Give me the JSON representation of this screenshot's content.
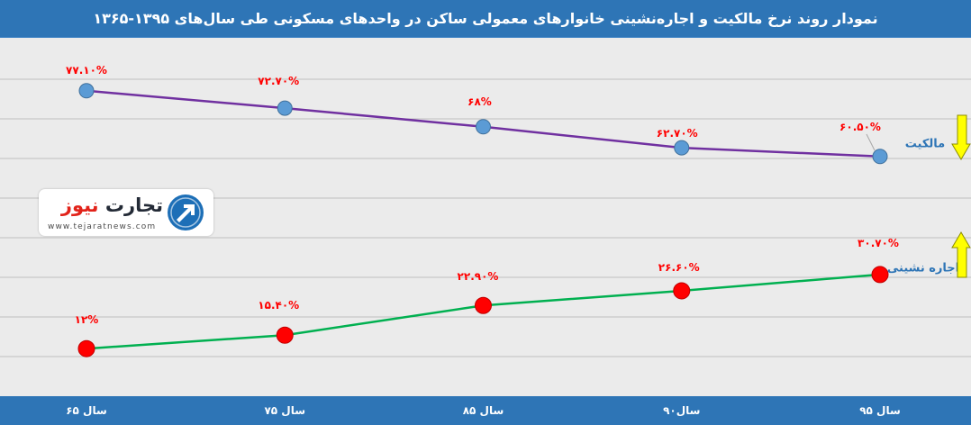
{
  "colors": {
    "title_bar": "#2e75b6",
    "background": "#ebebeb",
    "gridline": "#bfbfbf",
    "axis_bar": "#2e75b6",
    "data_label": "#ff0000",
    "series_label": "#2e75b6",
    "trend_arrow": "#ffff00"
  },
  "logo": {
    "brand_part1": "تجارت",
    "brand_part2": "نیوز",
    "website": "www.tejaratnews.com",
    "icon": "tejaratnews-logo-icon"
  },
  "chart_data": {
    "type": "line",
    "title": "نمودار روند نرخ مالکیت و اجاره‌نشینی خانوارهای معمولی ساکن در واحدهای مسکونی طی سال‌های ۱۳۹۵-۱۳۶۵",
    "categories": [
      "سال ۶۵",
      "سال ۷۵",
      "سال ۸۵",
      "سال۹۰",
      "سال ۹۵"
    ],
    "ylim": [
      0,
      90
    ],
    "grid": true,
    "legend": "right",
    "series": [
      {
        "name": "مالکیت",
        "values": [
          77.1,
          72.7,
          68,
          62.7,
          60.5
        ],
        "labels": [
          "۷۷.۱۰%",
          "۷۲.۷۰%",
          "۶۸%",
          "۶۲.۷۰%",
          "۶۰.۵۰%"
        ],
        "line_color": "#7030a0",
        "marker_color": "#5b9bd5",
        "marker_border": "#41719c",
        "trend_icon": "arrow-down-icon"
      },
      {
        "name": "اجاره نشینی",
        "values": [
          12,
          15.4,
          22.9,
          26.6,
          30.7
        ],
        "labels": [
          "۱۲%",
          "۱۵.۴۰%",
          "۲۲.۹۰%",
          "۲۶.۶۰%",
          "۳۰.۷۰%"
        ],
        "line_color": "#00b050",
        "marker_color": "#ff0000",
        "marker_border": "#c00000",
        "trend_icon": "arrow-up-icon"
      }
    ]
  }
}
